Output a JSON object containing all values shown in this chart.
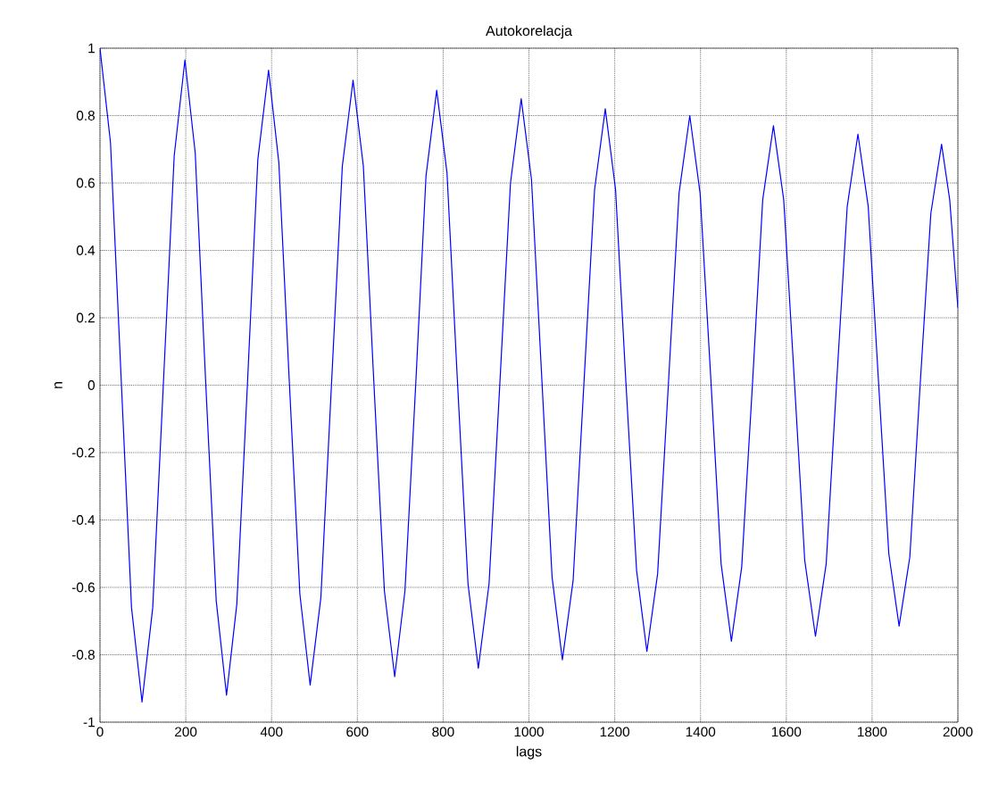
{
  "chart_data": {
    "type": "line",
    "title": "Autokorelacja",
    "xlabel": "lags",
    "ylabel": "n",
    "xlim": [
      0,
      2000
    ],
    "ylim": [
      -1,
      1
    ],
    "xticks": [
      0,
      200,
      400,
      600,
      800,
      1000,
      1200,
      1400,
      1600,
      1800,
      2000
    ],
    "yticks": [
      -1,
      -0.8,
      -0.6,
      -0.4,
      -0.2,
      0,
      0.2,
      0.4,
      0.6,
      0.8,
      1
    ],
    "grid": true,
    "series": [
      {
        "color": "#0000ff",
        "x": [
          0,
          24.5,
          49,
          73.5,
          98,
          123,
          148,
          173,
          198,
          222,
          246,
          271,
          295,
          319,
          344,
          368,
          393,
          417,
          441,
          466,
          490,
          515,
          540,
          565,
          590,
          614,
          638,
          663,
          687,
          711,
          736,
          760,
          785,
          809,
          833,
          858,
          882,
          907,
          932,
          957,
          982,
          1006,
          1030,
          1054,
          1078,
          1103,
          1128,
          1153,
          1178,
          1202,
          1226,
          1251,
          1275,
          1300,
          1325,
          1350,
          1375,
          1399,
          1424,
          1448,
          1472,
          1496,
          1521,
          1545,
          1570,
          1594,
          1619,
          1643,
          1668,
          1693,
          1717,
          1742,
          1767,
          1791,
          1815,
          1839,
          1863,
          1888,
          1912,
          1937,
          1962,
          1981,
          2000
        ],
        "values": [
          1.0,
          0.72,
          0.03,
          -0.66,
          -0.94,
          -0.66,
          0.01,
          0.68,
          0.965,
          0.69,
          0.02,
          -0.64,
          -0.92,
          -0.65,
          0.01,
          0.67,
          0.935,
          0.66,
          0.02,
          -0.62,
          -0.89,
          -0.63,
          0.01,
          0.65,
          0.905,
          0.65,
          0.02,
          -0.61,
          -0.865,
          -0.61,
          0.0,
          0.62,
          0.875,
          0.63,
          0.02,
          -0.59,
          -0.84,
          -0.59,
          0.0,
          0.6,
          0.85,
          0.61,
          0.02,
          -0.57,
          -0.815,
          -0.58,
          0.0,
          0.58,
          0.82,
          0.58,
          0.01,
          -0.55,
          -0.79,
          -0.56,
          0.0,
          0.57,
          0.8,
          0.57,
          0.02,
          -0.53,
          -0.76,
          -0.54,
          0.0,
          0.55,
          0.77,
          0.55,
          0.01,
          -0.52,
          -0.745,
          -0.53,
          0.0,
          0.53,
          0.745,
          0.53,
          0.01,
          -0.5,
          -0.715,
          -0.51,
          0.0,
          0.51,
          0.715,
          0.55,
          0.23
        ]
      }
    ]
  }
}
